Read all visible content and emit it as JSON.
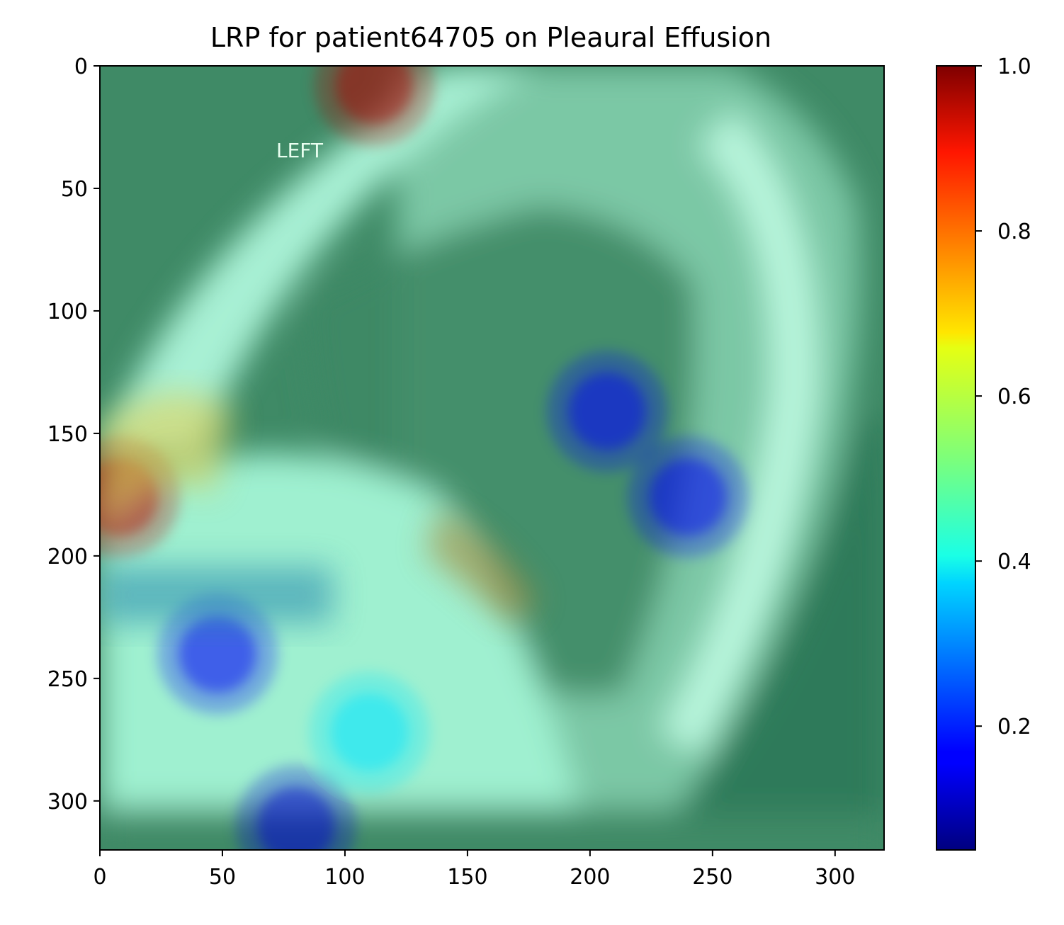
{
  "title": "LRP for patient64705 on Pleaural Effusion",
  "image_annotation": "LEFT",
  "chart_data": {
    "type": "heatmap",
    "title": "LRP for patient64705 on Pleaural Effusion",
    "xlabel": "",
    "ylabel": "",
    "xlim": [
      0,
      320
    ],
    "ylim": [
      320,
      0
    ],
    "x_ticks": [
      0,
      50,
      100,
      150,
      200,
      250,
      300
    ],
    "y_ticks": [
      0,
      50,
      100,
      150,
      200,
      250,
      300
    ],
    "colormap": "jet",
    "colorbar": {
      "range": [
        0.05,
        1.0
      ],
      "ticks": [
        0.2,
        0.4,
        0.6,
        0.8,
        1.0
      ],
      "tick_labels": [
        "0.2",
        "0.4",
        "0.6",
        "0.8",
        "1.0"
      ]
    },
    "relevance_hotspots": [
      {
        "x": 112,
        "y": 8,
        "value": 0.95
      },
      {
        "x": 8,
        "y": 176,
        "value": 0.95
      },
      {
        "x": 207,
        "y": 141,
        "value": 0.12
      },
      {
        "x": 240,
        "y": 176,
        "value": 0.12
      },
      {
        "x": 48,
        "y": 240,
        "value": 0.12
      },
      {
        "x": 110,
        "y": 272,
        "value": 0.35
      },
      {
        "x": 80,
        "y": 310,
        "value": 0.08
      }
    ],
    "background_value": 0.45
  }
}
